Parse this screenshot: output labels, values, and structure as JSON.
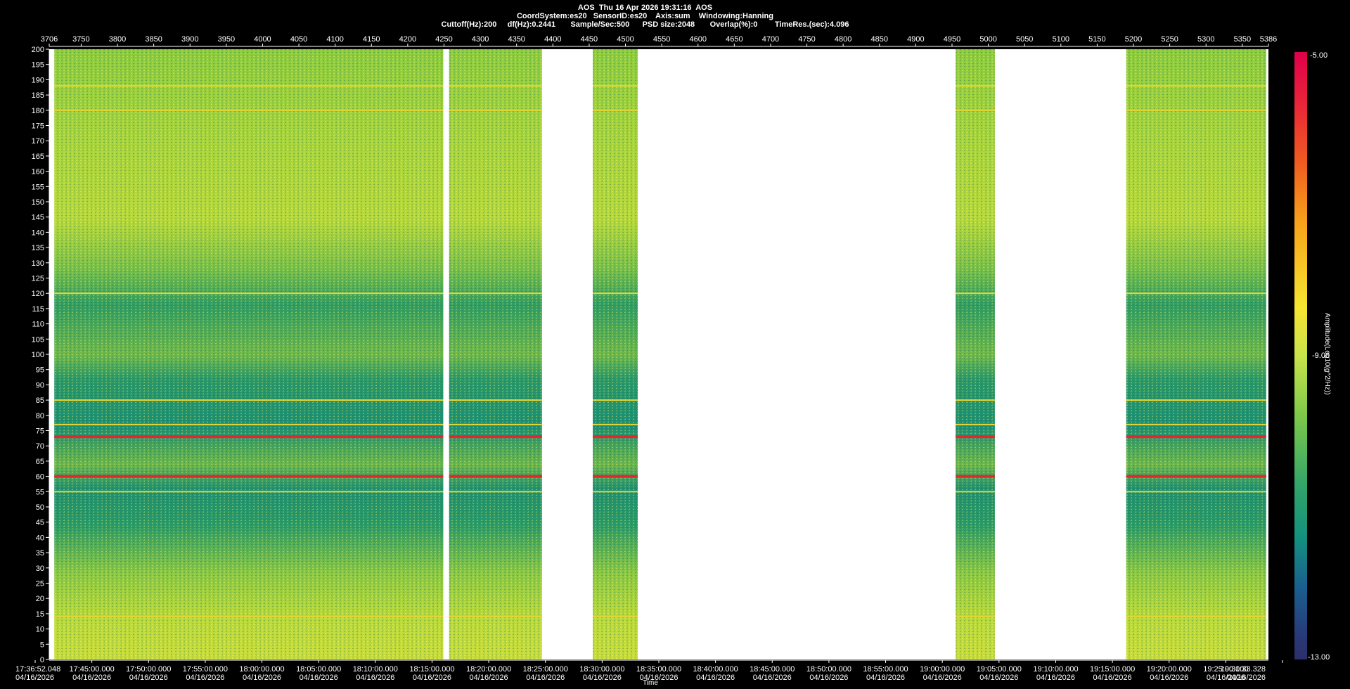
{
  "header": {
    "line1": "AOS  Thu 16 Apr 2026 19:31:16  AOS",
    "line2": "CoordSystem:es20   SensorID:es20    Axis:sum    Windowing:Hanning",
    "line3": "Cuttoff(Hz):200     df(Hz):0.2441       Sample/Sec:500      PSD size:2048       Overlap(%):0        TimeRes.(sec):4.096"
  },
  "colorbar": {
    "title": "Amplitude(Log10(g^2/Hz))",
    "max_label": "-5.00",
    "mid_label": "-9.00",
    "min_label": "-13.00",
    "colors": [
      "#e0004a",
      "#f05a20",
      "#f7e531",
      "#7cc84a",
      "#14907f",
      "#2a2f6a"
    ]
  },
  "chart_data": {
    "type": "heatmap",
    "title": "AOS  Thu 16 Apr 2026 19:31:16  AOS",
    "xlabel": "Time",
    "ylabel": "",
    "ylim": [
      0,
      200
    ],
    "y_ticks": [
      0,
      5,
      10,
      15,
      20,
      25,
      30,
      35,
      40,
      45,
      50,
      55,
      60,
      65,
      70,
      75,
      80,
      85,
      90,
      95,
      100,
      105,
      110,
      115,
      120,
      125,
      130,
      135,
      140,
      145,
      150,
      155,
      160,
      165,
      170,
      175,
      180,
      185,
      190,
      195,
      200
    ],
    "top_axis_range": [
      3706,
      5386
    ],
    "top_ticks": [
      "3706",
      "3750",
      "3800",
      "3850",
      "3900",
      "3950",
      "4000",
      "4050",
      "4100",
      "4150",
      "4200",
      "4250",
      "4300",
      "4350",
      "4400",
      "4450",
      "4500",
      "4550",
      "4600",
      "4650",
      "4700",
      "4750",
      "4800",
      "4850",
      "4900",
      "4950",
      "5000",
      "5050",
      "5100",
      "5150",
      "5200",
      "5250",
      "5300",
      "5350",
      "5386"
    ],
    "bottom_ticks": [
      {
        "time": "17:36:52.048",
        "date": "04/16/2026"
      },
      {
        "time": "17:45:00.000",
        "date": "04/16/2026"
      },
      {
        "time": "17:50:00.000",
        "date": "04/16/2026"
      },
      {
        "time": "17:55:00.000",
        "date": "04/16/2026"
      },
      {
        "time": "18:00:00.000",
        "date": "04/16/2026"
      },
      {
        "time": "18:05:00.000",
        "date": "04/16/2026"
      },
      {
        "time": "18:10:00.000",
        "date": "04/16/2026"
      },
      {
        "time": "18:15:00.000",
        "date": "04/16/2026"
      },
      {
        "time": "18:20:00.000",
        "date": "04/16/2026"
      },
      {
        "time": "18:25:00.000",
        "date": "04/16/2026"
      },
      {
        "time": "18:30:00.000",
        "date": "04/16/2026"
      },
      {
        "time": "18:35:00.000",
        "date": "04/16/2026"
      },
      {
        "time": "18:40:00.000",
        "date": "04/16/2026"
      },
      {
        "time": "18:45:00.000",
        "date": "04/16/2026"
      },
      {
        "time": "18:50:00.000",
        "date": "04/16/2026"
      },
      {
        "time": "18:55:00.000",
        "date": "04/16/2026"
      },
      {
        "time": "19:00:00.000",
        "date": "04/16/2026"
      },
      {
        "time": "19:05:00.000",
        "date": "04/16/2026"
      },
      {
        "time": "19:10:00.000",
        "date": "04/16/2026"
      },
      {
        "time": "19:15:00.000",
        "date": "04/16/2026"
      },
      {
        "time": "19:20:00.000",
        "date": "04/16/2026"
      },
      {
        "time": "19:25:00.000",
        "date": "04/16/2026"
      },
      {
        "time": "19:31:33.328",
        "date": "04/16/2026"
      }
    ],
    "data_segments": [
      {
        "start": 3713,
        "end": 4249
      },
      {
        "start": 4257,
        "end": 4385
      },
      {
        "start": 4455,
        "end": 4517
      },
      {
        "start": 4955,
        "end": 5009
      },
      {
        "start": 5190,
        "end": 5383
      }
    ],
    "notable_bands": [
      {
        "freq": 60,
        "level": "high"
      },
      {
        "freq": 73,
        "level": "high"
      },
      {
        "freq": 14,
        "level": "elevated"
      },
      {
        "freq": 55,
        "level": "elevated"
      },
      {
        "freq": 77,
        "level": "elevated"
      },
      {
        "freq": 85,
        "level": "elevated"
      },
      {
        "freq": 120,
        "level": "elevated"
      },
      {
        "freq": 180,
        "level": "elevated"
      },
      {
        "freq": 188,
        "level": "elevated"
      }
    ],
    "grid": false,
    "legend": "colorbar-right"
  }
}
